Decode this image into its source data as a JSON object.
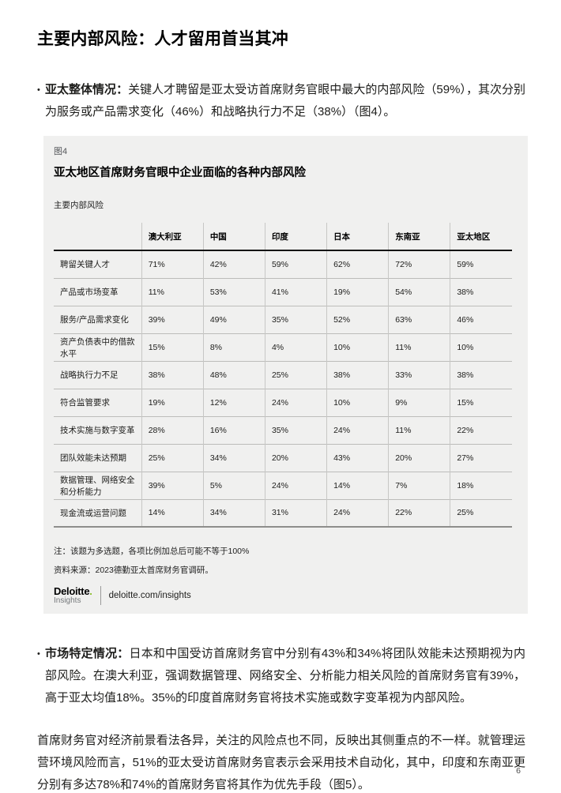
{
  "ui": {
    "bullet_marker": "•"
  },
  "page": {
    "title": "主要内部风险：人才留用首当其冲",
    "page_number": "6"
  },
  "bullets": [
    {
      "label": "亚太整体情况：",
      "text": "关键人才聘留是亚太受访首席财务官眼中最大的内部风险（59%），其次分别为服务或产品需求变化（46%）和战略执行力不足（38%）（图4）。"
    },
    {
      "label": "市场特定情况：",
      "text": "日本和中国受访首席财务官中分别有43%和34%将团队效能未达预期视为内部风险。在澳大利亚，强调数据管理、网络安全、分析能力相关风险的首席财务官有39%，高于亚太均值18%。35%的印度首席财务官将技术实施或数字变革视为内部风险。"
    }
  ],
  "closing_paragraph": "首席财务官对经济前景看法各异，关注的风险点也不同，反映出其侧重点的不一样。就管理运营环境风险而言，51%的亚太受访首席财务官表示会采用技术自动化，其中，印度和东南亚更分别有多达78%和74%的首席财务官将其作为优先手段（图5）。",
  "figure": {
    "tag": "图4",
    "title": "亚太地区首席财务官眼中企业面临的各种内部风险",
    "subtitle": "主要内部风险",
    "note": "注：该题为多选题，各项比例加总后可能不等于100%",
    "source": "资料来源：2023德勤亚太首席财务官调研。",
    "logo": {
      "brand": "Deloitte",
      "brand_dot": ".",
      "sub": "Insights",
      "url": "deloitte.com/insights"
    },
    "table": {
      "columns": [
        "澳大利亚",
        "中国",
        "印度",
        "日本",
        "东南亚",
        "亚太地区"
      ],
      "rows": [
        {
          "label": "聘留关键人才",
          "values": [
            "71%",
            "42%",
            "59%",
            "62%",
            "72%",
            "59%"
          ]
        },
        {
          "label": "产品或市场变革",
          "values": [
            "11%",
            "53%",
            "41%",
            "19%",
            "54%",
            "38%"
          ]
        },
        {
          "label": "服务/产品需求变化",
          "values": [
            "39%",
            "49%",
            "35%",
            "52%",
            "63%",
            "46%"
          ]
        },
        {
          "label": "资产负债表中的借款水平",
          "values": [
            "15%",
            "8%",
            "4%",
            "10%",
            "11%",
            "10%"
          ]
        },
        {
          "label": "战略执行力不足",
          "values": [
            "38%",
            "48%",
            "25%",
            "38%",
            "33%",
            "38%"
          ]
        },
        {
          "label": "符合监管要求",
          "values": [
            "19%",
            "12%",
            "24%",
            "10%",
            "9%",
            "15%"
          ]
        },
        {
          "label": "技术实施与数字变革",
          "values": [
            "28%",
            "16%",
            "35%",
            "24%",
            "11%",
            "22%"
          ]
        },
        {
          "label": "团队效能未达预期",
          "values": [
            "25%",
            "34%",
            "20%",
            "43%",
            "20%",
            "27%"
          ]
        },
        {
          "label": "数据管理、网络安全和分析能力",
          "values": [
            "39%",
            "5%",
            "24%",
            "14%",
            "7%",
            "18%"
          ]
        },
        {
          "label": "现金流或运营问题",
          "values": [
            "14%",
            "34%",
            "31%",
            "24%",
            "22%",
            "25%"
          ]
        }
      ]
    }
  },
  "colors": {
    "accent_green": "#86bc25",
    "panel_background": "#f0f0ef"
  }
}
